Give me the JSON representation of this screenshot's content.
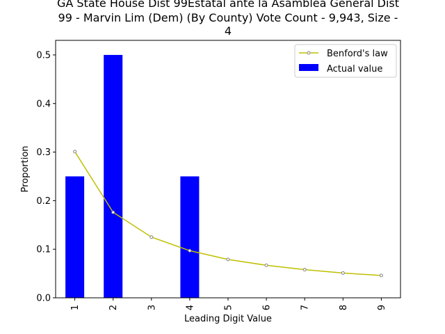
{
  "chart_data": {
    "type": "bar",
    "title_lines": [
      "GA State House Dist 99Estatal ante la Asamblea General Dist",
      "99 - Marvin Lim (Dem) (By County) Vote Count - 9,943, Size -",
      "4"
    ],
    "xlabel": "Leading Digit Value",
    "ylabel": "Proportion",
    "categories": [
      "1",
      "2",
      "3",
      "4",
      "5",
      "6",
      "7",
      "8",
      "9"
    ],
    "ylim": [
      0,
      0.53
    ],
    "yticks": [
      "0.0",
      "0.1",
      "0.2",
      "0.3",
      "0.4",
      "0.5"
    ],
    "legend_position": "top-right",
    "series": [
      {
        "name": "Benford's law",
        "kind": "line",
        "color": "#bfbf00",
        "values": [
          0.301,
          0.176,
          0.125,
          0.097,
          0.079,
          0.067,
          0.058,
          0.051,
          0.046
        ]
      },
      {
        "name": "Actual value",
        "kind": "bar",
        "color": "#0000ff",
        "values": [
          0.25,
          0.5,
          0,
          0.25,
          0,
          0,
          0,
          0,
          0
        ]
      }
    ]
  }
}
